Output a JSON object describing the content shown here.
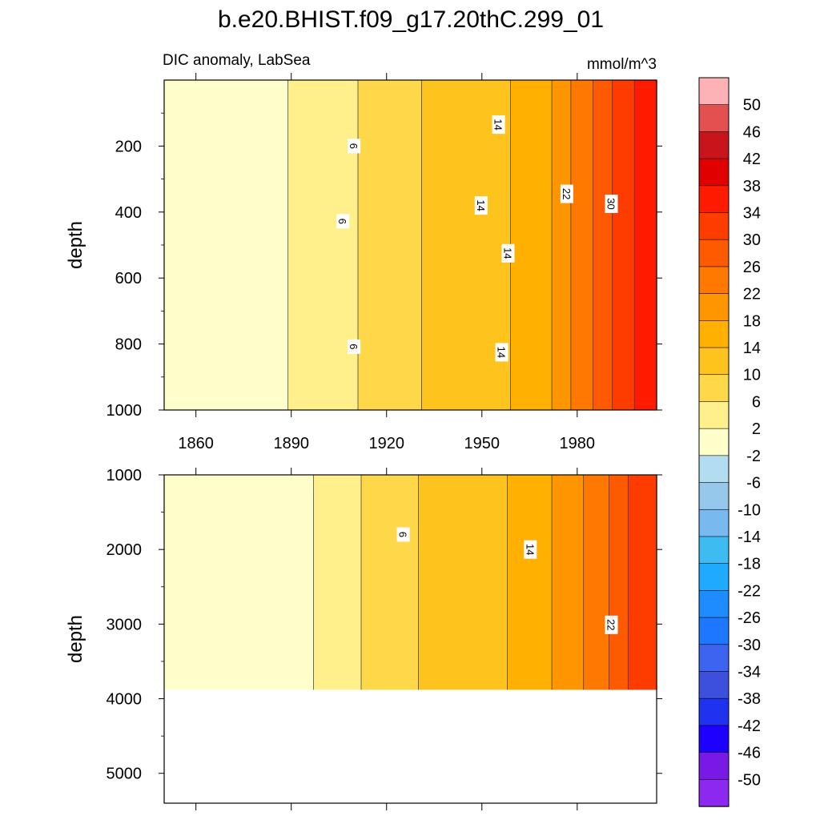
{
  "title": "b.e20.BHIST.f09_g17.20thC.299_01",
  "chart_data": {
    "type": "heatmap",
    "variable": "DIC anomaly, LabSea",
    "units": "mmol/m^3",
    "x_ticks": [
      "1860",
      "1890",
      "1920",
      "1950",
      "1980"
    ],
    "xlim": [
      1850,
      2005
    ],
    "colorbar": {
      "levels": [
        50,
        46,
        42,
        38,
        34,
        30,
        26,
        22,
        18,
        14,
        10,
        6,
        2,
        -2,
        -6,
        -10,
        -14,
        -18,
        -22,
        -26,
        -30,
        -34,
        -38,
        -42,
        -46,
        -50
      ],
      "labels": [
        "50",
        "46",
        "42",
        "38",
        "34",
        "30",
        "26",
        "22",
        "18",
        "14",
        "10",
        "6",
        "2",
        "-2",
        "-6",
        "-10",
        "-14",
        "-18",
        "-22",
        "-26",
        "-30",
        "-34",
        "-38",
        "-42",
        "-46",
        "-50"
      ],
      "colors": [
        "#fdb3b6",
        "#e2514f",
        "#c8141a",
        "#e00000",
        "#ff1a00",
        "#ff3c00",
        "#ff5a00",
        "#ff7800",
        "#ff9600",
        "#ffb000",
        "#ffc31e",
        "#ffd84a",
        "#fff08c",
        "#ffffcc",
        "#b4dcf0",
        "#96c8eb",
        "#78b9f0",
        "#3cbcf0",
        "#1eaaff",
        "#1e8cff",
        "#1e78ff",
        "#3c64f0",
        "#3c50dc",
        "#1e32f0",
        "#1e00ff",
        "#7819e6",
        "#8c28f0"
      ]
    },
    "panels": [
      {
        "ylabel": "depth",
        "ylim": [
          0,
          1000
        ],
        "y_ticks": [
          "200",
          "400",
          "600",
          "800",
          "1000"
        ],
        "y_tick_values": [
          200,
          400,
          600,
          800,
          1000
        ],
        "bands": [
          {
            "from": 1850,
            "to": 1889,
            "value": 0
          },
          {
            "from": 1889,
            "to": 1911,
            "value": 4
          },
          {
            "from": 1911,
            "to": 1931,
            "value": 8
          },
          {
            "from": 1931,
            "to": 1959,
            "value": 12
          },
          {
            "from": 1959,
            "to": 1972,
            "value": 16
          },
          {
            "from": 1972,
            "to": 1978,
            "value": 20
          },
          {
            "from": 1978,
            "to": 1985,
            "value": 24
          },
          {
            "from": 1985,
            "to": 1991,
            "value": 28
          },
          {
            "from": 1991,
            "to": 1998,
            "value": 32
          },
          {
            "from": 1998,
            "to": 2005,
            "value": 36
          }
        ],
        "contour_labels": [
          {
            "text": "6",
            "year": 1909.5,
            "depth": 200
          },
          {
            "text": "6",
            "year": 1906,
            "depth": 428
          },
          {
            "text": "6",
            "year": 1909.5,
            "depth": 808
          },
          {
            "text": "14",
            "year": 1955,
            "depth": 135
          },
          {
            "text": "14",
            "year": 1949.5,
            "depth": 380
          },
          {
            "text": "14",
            "year": 1958,
            "depth": 525
          },
          {
            "text": "14",
            "year": 1956,
            "depth": 825
          },
          {
            "text": "22",
            "year": 1976.5,
            "depth": 345
          },
          {
            "text": "30",
            "year": 1990.5,
            "depth": 375
          }
        ]
      },
      {
        "ylabel": "depth",
        "ylim": [
          1000,
          5400
        ],
        "y_ticks": [
          "1000",
          "2000",
          "3000",
          "4000",
          "5000"
        ],
        "y_tick_values": [
          1000,
          2000,
          3000,
          4000,
          5000
        ],
        "bottom_depth": 3880,
        "bands": [
          {
            "from": 1850,
            "to": 1897,
            "value": 0
          },
          {
            "from": 1897,
            "to": 1912,
            "value": 4
          },
          {
            "from": 1912,
            "to": 1930,
            "value": 8
          },
          {
            "from": 1930,
            "to": 1958,
            "value": 12
          },
          {
            "from": 1958,
            "to": 1972,
            "value": 16
          },
          {
            "from": 1972,
            "to": 1982,
            "value": 20
          },
          {
            "from": 1982,
            "to": 1990,
            "value": 24
          },
          {
            "from": 1990,
            "to": 1996,
            "value": 28
          },
          {
            "from": 1996,
            "to": 2005,
            "value": 32
          }
        ],
        "contour_labels": [
          {
            "text": "6",
            "year": 1925,
            "depth": 1800
          },
          {
            "text": "14",
            "year": 1965,
            "depth": 2000
          },
          {
            "text": "22",
            "year": 1990.5,
            "depth": 3010
          }
        ]
      }
    ]
  }
}
